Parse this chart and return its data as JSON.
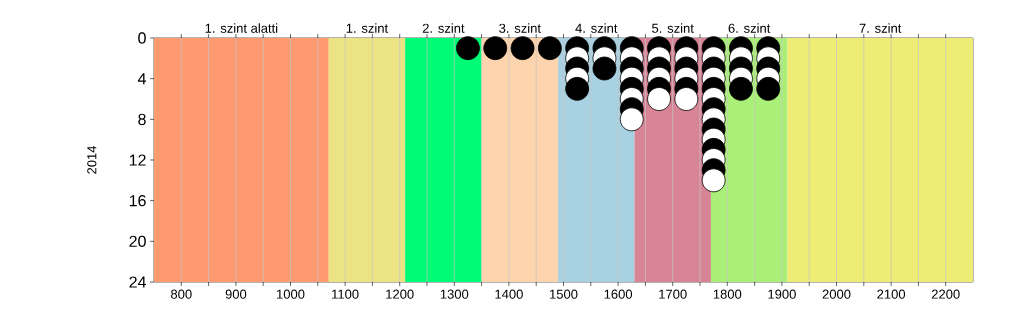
{
  "chart_data": {
    "type": "scatter",
    "ylabel": "2014",
    "xlim": [
      750,
      2250
    ],
    "ylim": [
      24,
      0
    ],
    "xticks": [
      800,
      {
        "value": 850,
        "label": null
      },
      900,
      {
        "value": 950,
        "label": null
      },
      1000,
      {
        "value": 1050,
        "label": null
      },
      1100,
      {
        "value": 1150,
        "label": null
      },
      1200,
      {
        "value": 1250,
        "label": null
      },
      1300,
      {
        "value": 1350,
        "label": null
      },
      1400,
      {
        "value": 1450,
        "label": null
      },
      1500,
      {
        "value": 1550,
        "label": null
      },
      1600,
      {
        "value": 1650,
        "label": null
      },
      1700,
      {
        "value": 1750,
        "label": null
      },
      1800,
      {
        "value": 1850,
        "label": null
      },
      1900,
      {
        "value": 1950,
        "label": null
      },
      2000,
      {
        "value": 2050,
        "label": null
      },
      2100,
      {
        "value": 2150,
        "label": null
      },
      2200
    ],
    "yticks": [
      0,
      4,
      8,
      12,
      16,
      20,
      24
    ],
    "grid": "x",
    "marker": "circle",
    "bands": [
      {
        "axis": "x",
        "from": 750,
        "to": 1070,
        "label": "1. szint alatti",
        "color": "#fd9a6f"
      },
      {
        "axis": "x",
        "from": 1070,
        "to": 1210,
        "label": "1. szint",
        "color": "#ece384"
      },
      {
        "axis": "x",
        "from": 1210,
        "to": 1350,
        "label": "2. szint",
        "color": "#00fb76"
      },
      {
        "axis": "x",
        "from": 1350,
        "to": 1490,
        "label": "3. szint",
        "color": "#fdd4ae"
      },
      {
        "axis": "x",
        "from": 1490,
        "to": 1630,
        "label": "4. szint",
        "color": "#a8d2e2"
      },
      {
        "axis": "x",
        "from": 1630,
        "to": 1770,
        "label": "5. szint",
        "color": "#d88497"
      },
      {
        "axis": "x",
        "from": 1770,
        "to": 1910,
        "label": "6. szint",
        "color": "#aaf078"
      },
      {
        "axis": "x",
        "from": 1910,
        "to": 2250,
        "label": "7. szint",
        "color": "#edec74"
      }
    ],
    "series": [
      {
        "x": [
          1325,
          1375,
          1425,
          1475,
          1525,
          1525,
          1525,
          1525,
          1525,
          1575,
          1575,
          1575,
          1625,
          1625,
          1625,
          1625,
          1625,
          1625,
          1625,
          1625,
          1675,
          1675,
          1675,
          1675,
          1675,
          1675,
          1725,
          1725,
          1725,
          1725,
          1725,
          1725,
          1775,
          1775,
          1775,
          1775,
          1775,
          1775,
          1775,
          1775,
          1775,
          1775,
          1775,
          1775,
          1775,
          1775,
          1825,
          1825,
          1825,
          1825,
          1825,
          1875,
          1875,
          1875,
          1875,
          1875
        ],
        "values": [
          1,
          1,
          1,
          1,
          1,
          2,
          3,
          4,
          5,
          1,
          2,
          3,
          1,
          2,
          3,
          4,
          5,
          6,
          7,
          8,
          1,
          2,
          3,
          4,
          5,
          6,
          1,
          2,
          3,
          4,
          5,
          6,
          1,
          2,
          3,
          4,
          5,
          6,
          7,
          8,
          9,
          10,
          11,
          12,
          13,
          14,
          1,
          2,
          3,
          4,
          5,
          1,
          2,
          3,
          4,
          5
        ],
        "colors": [
          "#000000",
          "#000000",
          "#000000",
          "#000000",
          "#000000",
          "#ffffff",
          "#000000",
          "#ffffff",
          "#000000",
          "#000000",
          "#ffffff",
          "#000000",
          "#000000",
          "#ffffff",
          "#000000",
          "#ffffff",
          "#000000",
          "#ffffff",
          "#000000",
          "#ffffff",
          "#000000",
          "#ffffff",
          "#000000",
          "#ffffff",
          "#000000",
          "#ffffff",
          "#000000",
          "#ffffff",
          "#000000",
          "#ffffff",
          "#000000",
          "#ffffff",
          "#000000",
          "#ffffff",
          "#000000",
          "#ffffff",
          "#000000",
          "#ffffff",
          "#000000",
          "#ffffff",
          "#000000",
          "#ffffff",
          "#000000",
          "#ffffff",
          "#000000",
          "#ffffff",
          "#000000",
          "#ffffff",
          "#000000",
          "#ffffff",
          "#000000",
          "#000000",
          "#ffffff",
          "#000000",
          "#ffffff",
          "#000000"
        ]
      }
    ]
  }
}
